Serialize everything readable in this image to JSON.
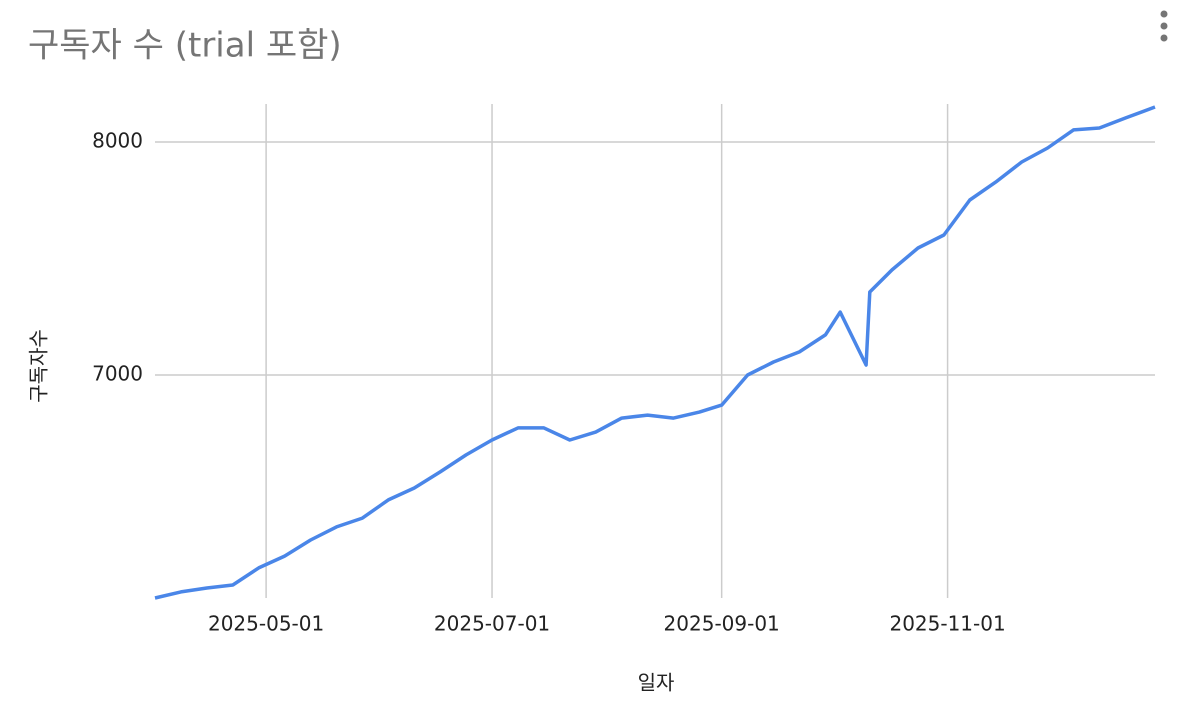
{
  "chart_data": {
    "type": "line",
    "title": "구독자 수 (trial 포함)",
    "x_label": "일자",
    "y_label": "구독자수",
    "x": [
      "2025-04-01",
      "2025-04-08",
      "2025-04-15",
      "2025-04-22",
      "2025-04-29",
      "2025-05-06",
      "2025-05-13",
      "2025-05-20",
      "2025-05-27",
      "2025-06-03",
      "2025-06-10",
      "2025-06-17",
      "2025-06-24",
      "2025-07-01",
      "2025-07-08",
      "2025-07-15",
      "2025-07-22",
      "2025-07-29",
      "2025-08-05",
      "2025-08-12",
      "2025-08-19",
      "2025-08-26",
      "2025-09-01",
      "2025-09-08",
      "2025-09-15",
      "2025-09-22",
      "2025-09-29",
      "2025-10-03",
      "2025-10-10",
      "2025-10-11",
      "2025-10-17",
      "2025-10-24",
      "2025-10-31",
      "2025-11-07",
      "2025-11-14",
      "2025-11-21",
      "2025-11-28",
      "2025-12-05",
      "2025-12-12",
      "2025-12-19",
      "2025-12-27"
    ],
    "values": [
      6043,
      6069,
      6086,
      6099,
      6172,
      6223,
      6292,
      6348,
      6386,
      6464,
      6515,
      6584,
      6657,
      6721,
      6773,
      6773,
      6721,
      6755,
      6815,
      6828,
      6815,
      6841,
      6871,
      7000,
      7056,
      7099,
      7172,
      7270,
      7043,
      7356,
      7451,
      7545,
      7601,
      7751,
      7828,
      7914,
      7974,
      8052,
      8060,
      8103,
      8150
    ],
    "color": "#4a86e8",
    "xlim": [
      "2025-04-01",
      "2025-12-27"
    ],
    "xticks": [
      "2025-05-01",
      "2025-07-01",
      "2025-09-01",
      "2025-11-01"
    ],
    "ylim": [
      6043,
      8163
    ],
    "yticks": [
      7000,
      8000
    ],
    "grid": true
  }
}
